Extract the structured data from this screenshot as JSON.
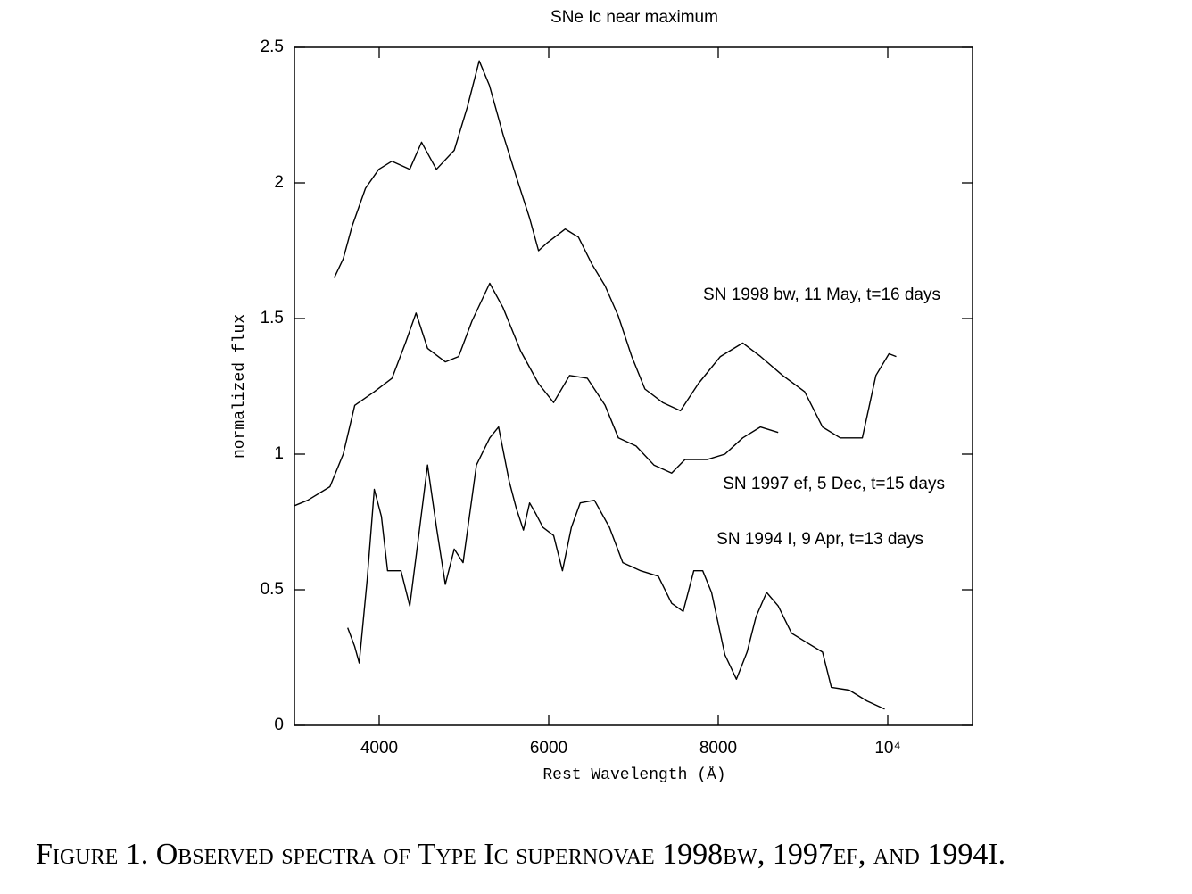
{
  "chart_data": {
    "type": "line",
    "title": "SNe Ic near maximum",
    "xlabel": "Rest Wavelength (Å)",
    "ylabel": "normalized flux",
    "xlim": [
      3000,
      11000
    ],
    "ylim": [
      0,
      2.5
    ],
    "xticks": [
      4000,
      6000,
      8000,
      {
        "value": 10000,
        "label": "10⁴"
      }
    ],
    "yticks": [
      0,
      0.5,
      1,
      1.5,
      2,
      2.5
    ],
    "series": [
      {
        "name": "SN 1998 bw, 11 May, t=16 days",
        "color": "#000000",
        "x": [
          3470,
          3576,
          3680,
          3838,
          3995,
          4150,
          4360,
          4500,
          4675,
          4885,
          5040,
          5180,
          5300,
          5460,
          5620,
          5775,
          5880,
          5985,
          6195,
          6350,
          6510,
          6665,
          6820,
          6980,
          7135,
          7345,
          7555,
          7765,
          8025,
          8290,
          8500,
          8760,
          9020,
          9230,
          9440,
          9700,
          9860,
          10015,
          10100
        ],
        "values": [
          1.65,
          1.72,
          1.84,
          1.98,
          2.05,
          2.08,
          2.05,
          2.15,
          2.05,
          2.12,
          2.28,
          2.45,
          2.36,
          2.18,
          2.02,
          1.87,
          1.75,
          1.78,
          1.83,
          1.8,
          1.7,
          1.62,
          1.51,
          1.36,
          1.24,
          1.19,
          1.16,
          1.26,
          1.36,
          1.41,
          1.36,
          1.29,
          1.23,
          1.1,
          1.06,
          1.06,
          1.29,
          1.37,
          1.36
        ]
      },
      {
        "name": "SN 1997 ef, 5 Dec, t=15 days",
        "color": "#000000",
        "x": [
          3000,
          3157,
          3419,
          3576,
          3712,
          3942,
          4152,
          4309,
          4435,
          4571,
          4780,
          4937,
          5094,
          5304,
          5461,
          5670,
          5880,
          6058,
          6246,
          6455,
          6665,
          6822,
          7031,
          7241,
          7450,
          7607,
          7869,
          8079,
          8288,
          8497,
          8707
        ],
        "values": [
          0.81,
          0.83,
          0.88,
          1.0,
          1.18,
          1.23,
          1.28,
          1.41,
          1.52,
          1.39,
          1.34,
          1.36,
          1.49,
          1.63,
          1.54,
          1.38,
          1.26,
          1.19,
          1.29,
          1.28,
          1.18,
          1.06,
          1.03,
          0.96,
          0.93,
          0.98,
          0.98,
          1.0,
          1.06,
          1.1,
          1.08
        ]
      },
      {
        "name": "SN 1994 I, 9 Apr, t=13 days",
        "color": "#000000",
        "x": [
          3628,
          3712,
          3764,
          3859,
          3942,
          4026,
          4099,
          4257,
          4361,
          4466,
          4571,
          4676,
          4780,
          4885,
          4990,
          5147,
          5304,
          5408,
          5534,
          5618,
          5702,
          5775,
          5848,
          5932,
          6058,
          6162,
          6267,
          6372,
          6539,
          6717,
          6874,
          7084,
          7293,
          7450,
          7586,
          7712,
          7817,
          7921,
          8079,
          8215,
          8340,
          8445,
          8571,
          8707,
          8864,
          9021,
          9230,
          9335,
          9545,
          9754,
          9963
        ],
        "values": [
          0.36,
          0.29,
          0.23,
          0.54,
          0.87,
          0.77,
          0.57,
          0.57,
          0.44,
          0.7,
          0.96,
          0.73,
          0.52,
          0.65,
          0.6,
          0.96,
          1.06,
          1.1,
          0.9,
          0.8,
          0.72,
          0.82,
          0.78,
          0.73,
          0.7,
          0.57,
          0.73,
          0.82,
          0.83,
          0.73,
          0.6,
          0.57,
          0.55,
          0.45,
          0.42,
          0.57,
          0.57,
          0.49,
          0.26,
          0.17,
          0.27,
          0.4,
          0.49,
          0.44,
          0.34,
          0.31,
          0.27,
          0.14,
          0.13,
          0.09,
          0.06
        ]
      }
    ]
  },
  "caption": "Figure 1. Observed spectra of Type Ic supernovae 1998bw, 1997ef, and 1994I."
}
